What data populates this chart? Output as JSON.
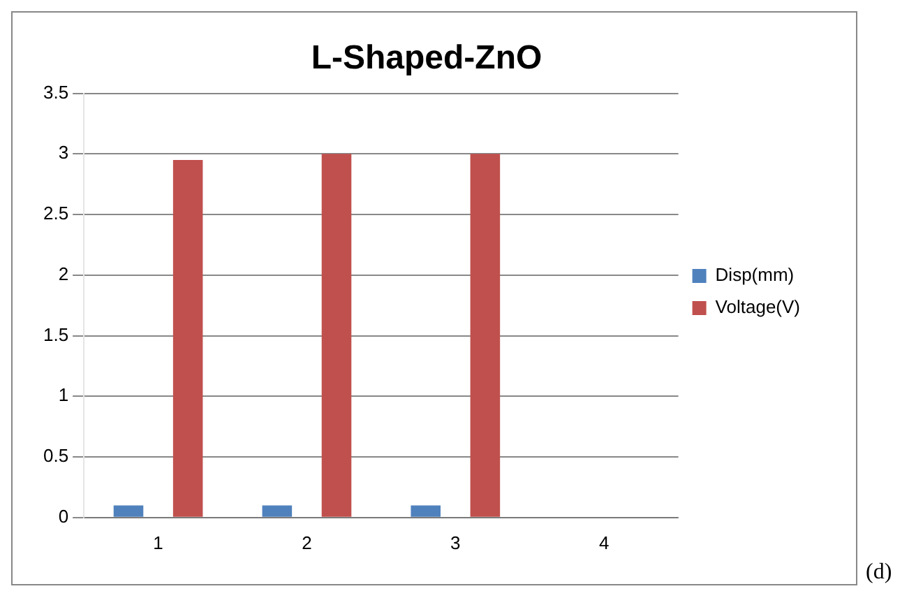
{
  "chart_data": {
    "type": "bar",
    "title": "L-Shaped-ZnO",
    "categories": [
      "1",
      "2",
      "3",
      "4"
    ],
    "series": [
      {
        "name": "Disp(mm)",
        "color": "#4f81bd",
        "values": [
          0.1,
          0.1,
          0.1,
          null
        ]
      },
      {
        "name": "Voltage(V)",
        "color": "#c0504d",
        "values": [
          2.95,
          3.0,
          3.0,
          null
        ]
      }
    ],
    "ylim": [
      0,
      3.5
    ],
    "yticks": [
      0,
      0.5,
      1,
      1.5,
      2,
      2.5,
      3,
      3.5
    ],
    "grid": "y",
    "legend": "right",
    "annotations": [
      "(d)"
    ]
  }
}
